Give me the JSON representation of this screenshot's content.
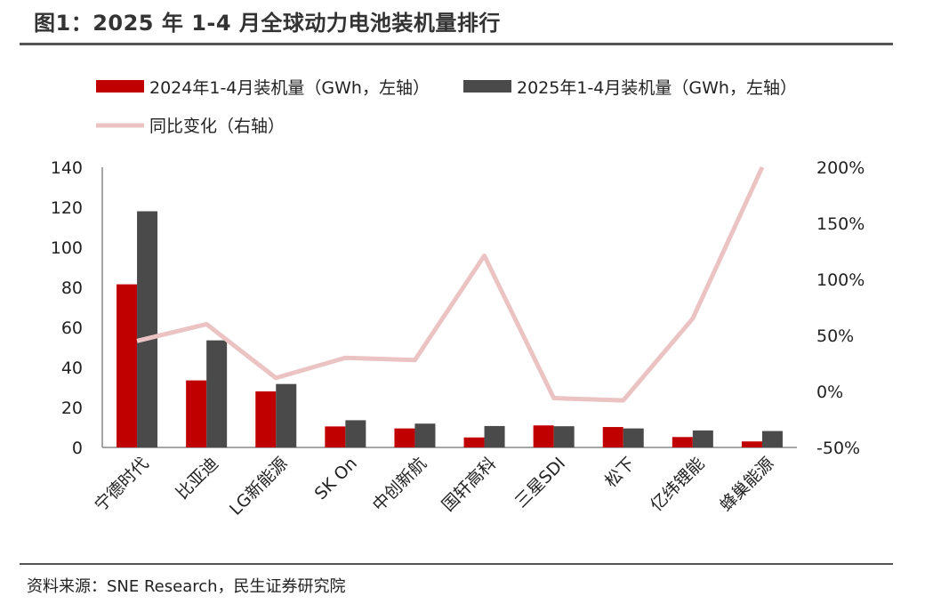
{
  "title": "图1：2025 年 1-4 月全球动力电池装机量排行",
  "source": "资料来源：SNE Research，民生证券研究院",
  "colors": {
    "series_2024": "#c00000",
    "series_2025": "#4a4a4a",
    "yoy_line": "#ebc3c3"
  },
  "chart_data": {
    "type": "bar",
    "categories": [
      "宁德时代",
      "比亚迪",
      "LG新能源",
      "SK On",
      "中创新航",
      "国轩高科",
      "三星SDI",
      "松下",
      "亿纬锂能",
      "蜂巢能源"
    ],
    "series": [
      {
        "name": "2024年1-4月装机量（GWh，左轴）",
        "axis": "left",
        "kind": "bar",
        "values": [
          81.5,
          33.5,
          28,
          10.5,
          9.5,
          5,
          11,
          10.2,
          5.2,
          3
        ]
      },
      {
        "name": "2025年1-4月装机量（GWh，左轴）",
        "axis": "left",
        "kind": "bar",
        "values": [
          118,
          53.5,
          31.7,
          13.6,
          11.9,
          10.7,
          10.6,
          9.5,
          8.5,
          8.2
        ]
      },
      {
        "name": "同比变化（右轴）",
        "axis": "right",
        "kind": "line",
        "unit": "%",
        "values": [
          45,
          60,
          12,
          30,
          28,
          121,
          -6,
          -8,
          65,
          200
        ]
      }
    ],
    "left_axis": {
      "ylim": [
        0,
        140
      ],
      "ticks": [
        "0",
        "20",
        "40",
        "60",
        "80",
        "100",
        "120",
        "140"
      ]
    },
    "right_axis": {
      "ylim": [
        -50,
        200
      ],
      "ticks": [
        "-50%",
        "0%",
        "50%",
        "100%",
        "150%",
        "200%"
      ]
    },
    "legend_position": "top-left",
    "grid": false
  }
}
